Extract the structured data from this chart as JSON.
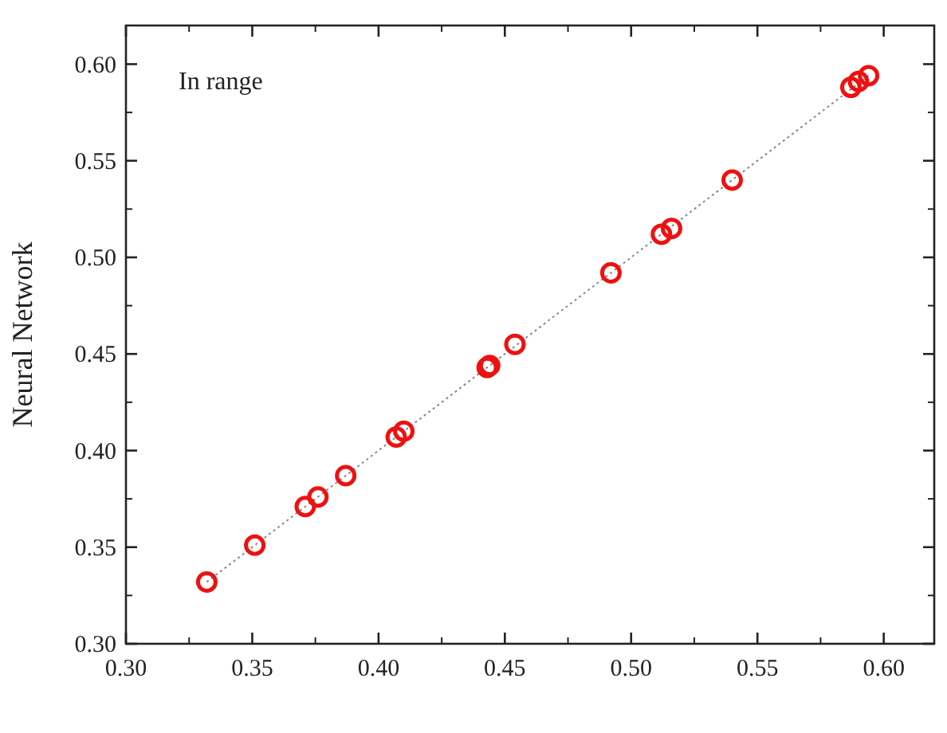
{
  "chart_data": {
    "type": "scatter",
    "ylabel": "Neural Network",
    "annotations": [
      "In range"
    ],
    "xlim": [
      0.3,
      0.62
    ],
    "ylim": [
      0.3,
      0.62
    ],
    "xticks": [
      {
        "value": 0.3,
        "label": "0.30"
      },
      {
        "value": 0.35,
        "label": "0.35"
      },
      {
        "value": 0.4,
        "label": "0.40"
      },
      {
        "value": 0.45,
        "label": "0.45"
      },
      {
        "value": 0.5,
        "label": "0.50"
      },
      {
        "value": 0.55,
        "label": "0.55"
      },
      {
        "value": 0.6,
        "label": "0.60"
      }
    ],
    "yticks": [
      {
        "value": 0.3,
        "label": "0.30"
      },
      {
        "value": 0.35,
        "label": "0.35"
      },
      {
        "value": 0.4,
        "label": "0.40"
      },
      {
        "value": 0.45,
        "label": "0.45"
      },
      {
        "value": 0.5,
        "label": "0.50"
      },
      {
        "value": 0.55,
        "label": "0.55"
      },
      {
        "value": 0.6,
        "label": "0.60"
      }
    ],
    "grid": false,
    "series": [
      {
        "type": "line",
        "color": "#888888",
        "line_style": "dotted",
        "marker": "none",
        "x": [
          0.332,
          0.594
        ],
        "values": [
          0.332,
          0.594
        ]
      },
      {
        "color": "#ee1111",
        "marker": "circle",
        "x": [
          0.332,
          0.351,
          0.371,
          0.376,
          0.387,
          0.407,
          0.41,
          0.443,
          0.444,
          0.454,
          0.492,
          0.512,
          0.516,
          0.54,
          0.587,
          0.59,
          0.594
        ],
        "values": [
          0.332,
          0.351,
          0.371,
          0.376,
          0.387,
          0.407,
          0.41,
          0.443,
          0.444,
          0.455,
          0.492,
          0.512,
          0.515,
          0.54,
          0.588,
          0.591,
          0.594
        ]
      }
    ]
  }
}
